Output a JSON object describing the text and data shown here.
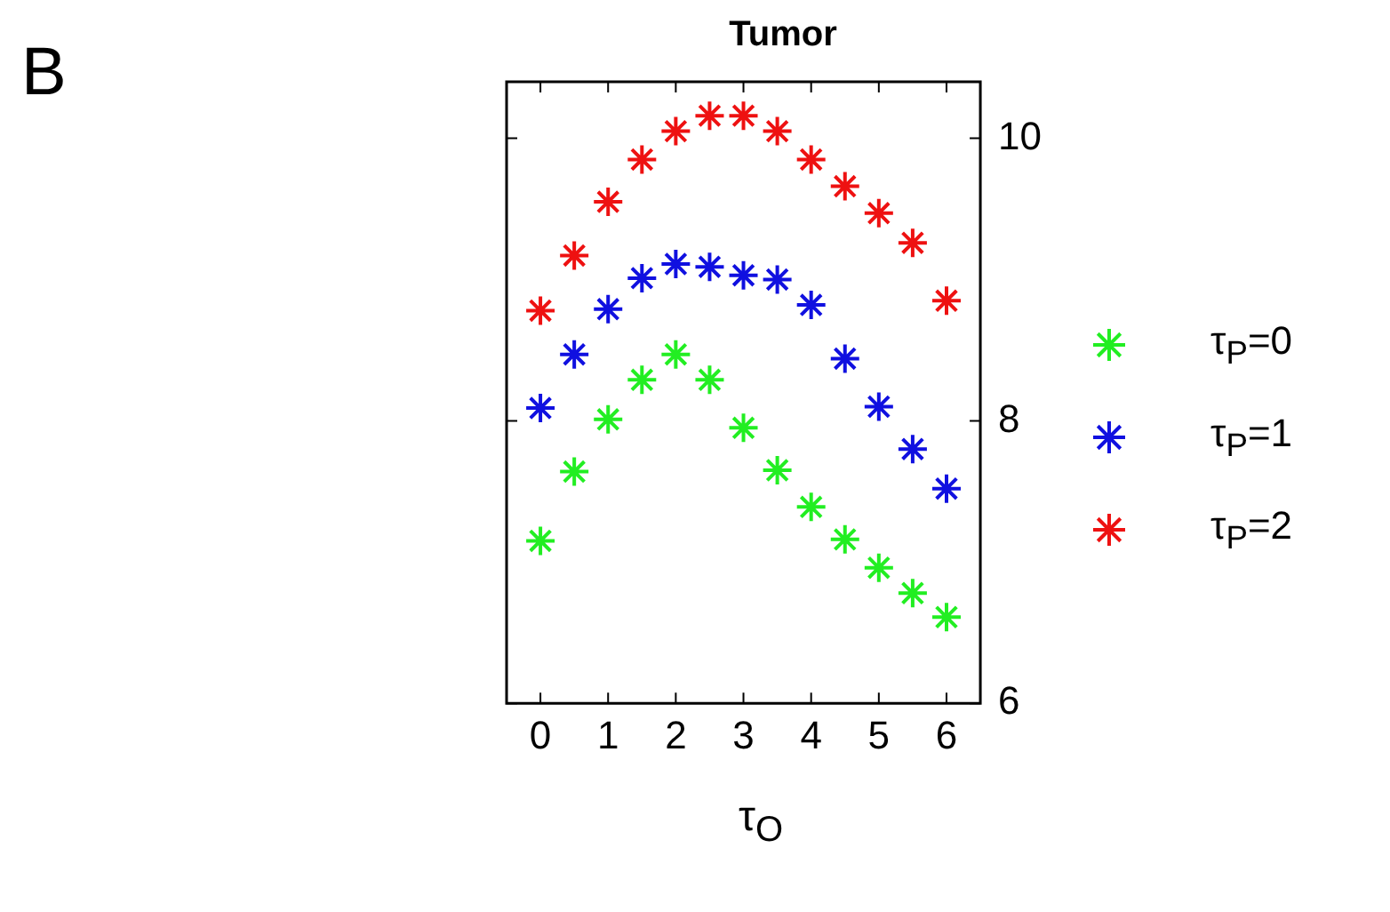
{
  "chart_data": {
    "type": "scatter",
    "title": "Tumor",
    "xlabel": "τ$_{O}$",
    "annotations": [
      "B"
    ],
    "x": [
      0,
      0.5,
      1,
      1.5,
      2,
      2.5,
      3,
      3.5,
      4,
      4.5,
      5,
      5.5,
      6
    ],
    "series": [
      {
        "name": "τ$_{P}$=0",
        "color": "#22ee22",
        "values": [
          7.15,
          7.64,
          8.01,
          8.29,
          8.47,
          8.29,
          7.95,
          7.65,
          7.39,
          7.16,
          6.96,
          6.78,
          6.61
        ]
      },
      {
        "name": "τ$_{P}$=1",
        "color": "#1010e0",
        "values": [
          8.09,
          8.47,
          8.79,
          9.01,
          9.11,
          9.09,
          9.03,
          9.0,
          8.82,
          8.44,
          8.1,
          7.8,
          7.52
        ]
      },
      {
        "name": "τ$_{P}$=2",
        "color": "#ee1111",
        "values": [
          8.78,
          9.17,
          9.55,
          9.85,
          10.05,
          10.16,
          10.16,
          10.05,
          9.85,
          9.66,
          9.47,
          9.26,
          8.85
        ]
      }
    ],
    "xlim": [
      -0.5,
      6.5
    ],
    "xticks": [
      0,
      1,
      2,
      3,
      4,
      5,
      6
    ],
    "ylim": [
      6,
      10.4
    ],
    "yticks": [
      6,
      8,
      10
    ],
    "grid": false,
    "legend": "right",
    "marker": "cross"
  }
}
